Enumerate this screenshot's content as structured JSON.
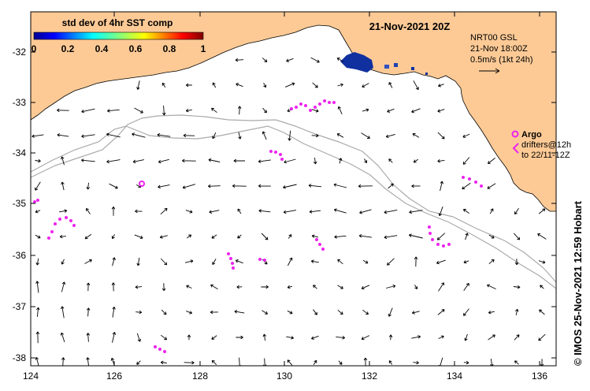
{
  "title": "21-Nov-2021 20Z",
  "colorbar": {
    "title": "std dev of 4hr SST comp",
    "ticks": [
      "0",
      "0.2",
      "0.4",
      "0.6",
      "0.8",
      "1"
    ]
  },
  "current_legend": {
    "line1": "NRT00 GSL",
    "line2": "21-Nov 18:00Z",
    "line3": "0.5m/s (1kt 24h)"
  },
  "argo_legend": {
    "title": "Argo",
    "line1": "drifters@12h",
    "line2": "to 22/11-12Z"
  },
  "credit": "© IMOS 25-Nov-2021 12:59 Hobart",
  "axes": {
    "x_ticks": [
      "124",
      "126",
      "128",
      "130",
      "132",
      "134",
      "136"
    ],
    "y_ticks": [
      "-32",
      "-33",
      "-34",
      "-35",
      "-36",
      "-37",
      "-38"
    ]
  },
  "colors": {
    "land": "#fdca96",
    "arrow": "#000000",
    "drifter": "#ee22ee",
    "shelf_contour": "#aaaaaa",
    "sst_patch": "#1030a0"
  }
}
